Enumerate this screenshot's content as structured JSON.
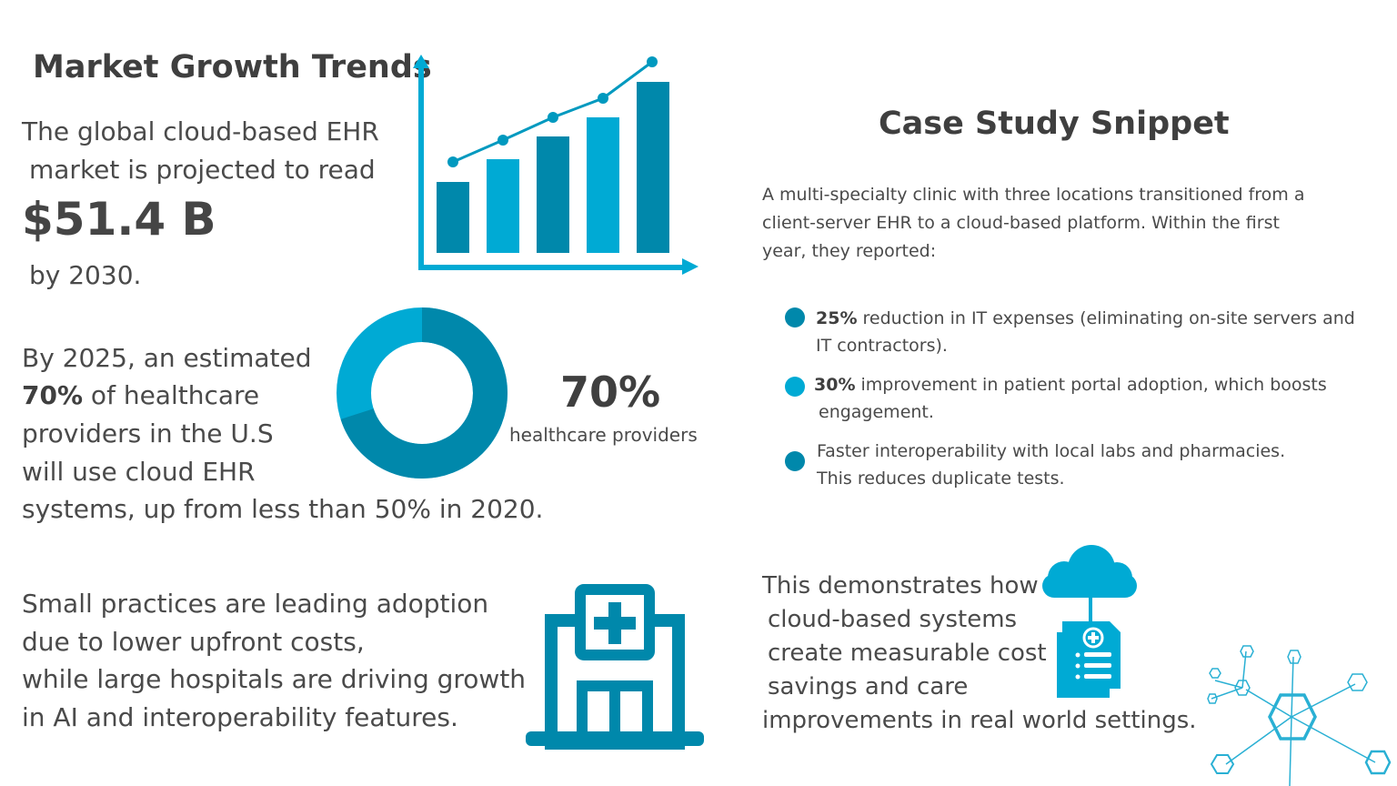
{
  "colors": {
    "dark": "#0088ab",
    "light": "#00aad4",
    "text": "#4a4a4a"
  },
  "market": {
    "title": "Market Growth Trends",
    "line1": "The global cloud-based EHR",
    "line2": "market is projected to read",
    "value": "$51.4 B",
    "line3": "by 2030.",
    "chart_icon": "bar-line-growth-icon"
  },
  "adoption": {
    "line1": "By 2025, an estimated",
    "pct_bold": "70%",
    "line2_rest": " of healthcare",
    "line3": "providers in the U.S",
    "line4": "will use cloud EHR",
    "line5": "systems, up from less than 50% in 2020.",
    "donut_value": "70%",
    "donut_label": "healthcare providers",
    "donut_fraction": 0.7
  },
  "practices": {
    "lines": [
      "Small practices are leading adoption",
      "due to lower upfront costs,",
      "while large hospitals are driving growth",
      "in AI and interoperability features."
    ],
    "icon": "hospital-icon"
  },
  "case": {
    "title": "Case Study Snippet",
    "intro": [
      "A multi-specialty clinic with three locations transitioned from a",
      "client-server EHR to a cloud-based platform. Within the first",
      "year, they reported:"
    ],
    "bullets": [
      {
        "bold": "25%",
        "rest": " reduction in IT expenses (eliminating on-site servers and",
        "rest2": "IT contractors).",
        "color": "#0088ab"
      },
      {
        "bold": "30%",
        "rest": " improvement in patient portal adoption, which boosts",
        "rest2": "engagement.",
        "color": "#00aad4"
      },
      {
        "bold": "",
        "rest": "Faster interoperability with local labs and pharmacies.",
        "rest2": "This reduces duplicate tests.",
        "color": "#0088ab"
      }
    ],
    "conclusion": [
      "This demonstrates how",
      "cloud-based systems",
      "create measurable cost",
      "savings and care",
      "improvements in real world settings."
    ],
    "icons": [
      "cloud-document-icon",
      "molecule-network-icon"
    ]
  }
}
